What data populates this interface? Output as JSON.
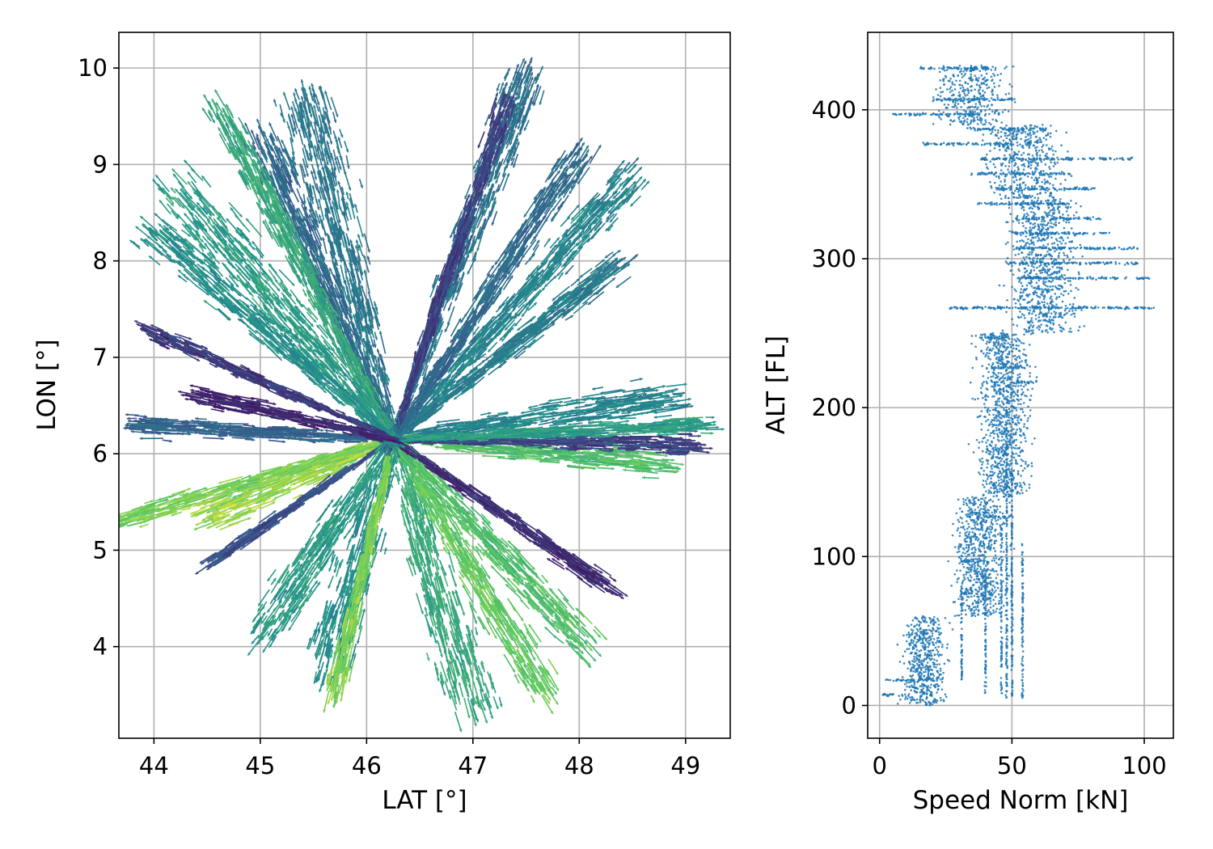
{
  "chart_data": [
    {
      "type": "quiver",
      "xlabel": "LAT [°]",
      "ylabel": "LON [°]",
      "xlim": [
        43.67,
        49.42
      ],
      "ylim": [
        3.05,
        10.37
      ],
      "xticks": [
        44,
        45,
        46,
        47,
        48,
        49
      ],
      "yticks": [
        4,
        5,
        6,
        7,
        8,
        9,
        10
      ],
      "grid": true,
      "center": [
        46.25,
        6.15
      ],
      "colormap": [
        "#440154",
        "#3b528b",
        "#21908d",
        "#5dc963",
        "#fde725"
      ],
      "flows": [
        {
          "to": [
            44.5,
            5.35
          ],
          "spread": 0.2,
          "speed_level": 0.85
        },
        {
          "to": [
            43.7,
            5.3
          ],
          "spread": 0.12,
          "speed_level": 0.8
        },
        {
          "to": [
            44.5,
            4.85
          ],
          "spread": 0.06,
          "speed_level": 0.25
        },
        {
          "to": [
            45.0,
            4.1
          ],
          "spread": 0.25,
          "speed_level": 0.55
        },
        {
          "to": [
            45.6,
            3.7
          ],
          "spread": 0.3,
          "speed_level": 0.5
        },
        {
          "to": [
            45.7,
            3.5
          ],
          "spread": 0.1,
          "speed_level": 0.8
        },
        {
          "to": [
            47.0,
            3.35
          ],
          "spread": 0.3,
          "speed_level": 0.6
        },
        {
          "to": [
            47.7,
            3.5
          ],
          "spread": 0.2,
          "speed_level": 0.75
        },
        {
          "to": [
            48.1,
            4.0
          ],
          "spread": 0.2,
          "speed_level": 0.7
        },
        {
          "to": [
            48.3,
            4.6
          ],
          "spread": 0.1,
          "speed_level": 0.15
        },
        {
          "to": [
            48.8,
            5.9
          ],
          "spread": 0.15,
          "speed_level": 0.7
        },
        {
          "to": [
            49.1,
            6.1
          ],
          "spread": 0.12,
          "speed_level": 0.2
        },
        {
          "to": [
            48.9,
            6.6
          ],
          "spread": 0.2,
          "speed_level": 0.45
        },
        {
          "to": [
            49.2,
            6.3
          ],
          "spread": 0.1,
          "speed_level": 0.55
        },
        {
          "to": [
            48.4,
            8.0
          ],
          "spread": 0.15,
          "speed_level": 0.42
        },
        {
          "to": [
            48.5,
            8.9
          ],
          "spread": 0.2,
          "speed_level": 0.45
        },
        {
          "to": [
            48.0,
            9.1
          ],
          "spread": 0.15,
          "speed_level": 0.35
        },
        {
          "to": [
            47.5,
            9.9
          ],
          "spread": 0.2,
          "speed_level": 0.38
        },
        {
          "to": [
            47.3,
            9.6
          ],
          "spread": 0.1,
          "speed_level": 0.2
        },
        {
          "to": [
            45.4,
            9.7
          ],
          "spread": 0.3,
          "speed_level": 0.4
        },
        {
          "to": [
            45.0,
            9.3
          ],
          "spread": 0.2,
          "speed_level": 0.35
        },
        {
          "to": [
            44.6,
            9.6
          ],
          "spread": 0.15,
          "speed_level": 0.6
        },
        {
          "to": [
            44.2,
            8.8
          ],
          "spread": 0.3,
          "speed_level": 0.55
        },
        {
          "to": [
            44.0,
            8.3
          ],
          "spread": 0.2,
          "speed_level": 0.5
        },
        {
          "to": [
            43.8,
            6.3
          ],
          "spread": 0.12,
          "speed_level": 0.32
        },
        {
          "to": [
            44.0,
            7.25
          ],
          "spread": 0.08,
          "speed_level": 0.18
        },
        {
          "to": [
            44.4,
            6.6
          ],
          "spread": 0.1,
          "speed_level": 0.12
        }
      ]
    },
    {
      "type": "scatter",
      "xlabel": "Speed Norm [kN]",
      "ylabel": "ALT [FL]",
      "xlim": [
        -4.5,
        111
      ],
      "ylim": [
        -22,
        452
      ],
      "xticks": [
        0,
        50,
        100
      ],
      "yticks": [
        0,
        100,
        200,
        300,
        400
      ],
      "grid": true,
      "color": "#1f77b4",
      "bands": [
        {
          "alt_min": 0,
          "alt_max": 60,
          "speed_center": 17,
          "speed_spread": 8
        },
        {
          "alt_min": 60,
          "alt_max": 140,
          "speed_center": 38,
          "speed_spread": 10
        },
        {
          "alt_min": 140,
          "alt_max": 250,
          "speed_center": 47,
          "speed_spread": 10
        },
        {
          "alt_min": 250,
          "alt_max": 340,
          "speed_center": 62,
          "speed_spread": 13
        },
        {
          "alt_min": 340,
          "alt_max": 390,
          "speed_center": 55,
          "speed_spread": 14
        },
        {
          "alt_min": 390,
          "alt_max": 430,
          "speed_center": 35,
          "speed_spread": 14
        }
      ],
      "levels": [
        {
          "alt": 428,
          "speed_from": 15,
          "speed_to": 44
        },
        {
          "alt": 407,
          "speed_from": 20,
          "speed_to": 51
        },
        {
          "alt": 397,
          "speed_from": 5,
          "speed_to": 38
        },
        {
          "alt": 387,
          "speed_from": 33,
          "speed_to": 63
        },
        {
          "alt": 377,
          "speed_from": 16,
          "speed_to": 51
        },
        {
          "alt": 367,
          "speed_from": 38,
          "speed_to": 96
        },
        {
          "alt": 357,
          "speed_from": 34,
          "speed_to": 72
        },
        {
          "alt": 347,
          "speed_from": 44,
          "speed_to": 82
        },
        {
          "alt": 337,
          "speed_from": 37,
          "speed_to": 70
        },
        {
          "alt": 327,
          "speed_from": 51,
          "speed_to": 84
        },
        {
          "alt": 317,
          "speed_from": 50,
          "speed_to": 87
        },
        {
          "alt": 307,
          "speed_from": 51,
          "speed_to": 98
        },
        {
          "alt": 297,
          "speed_from": 48,
          "speed_to": 98
        },
        {
          "alt": 287,
          "speed_from": 52,
          "speed_to": 103
        },
        {
          "alt": 267,
          "speed_from": 26,
          "speed_to": 104
        },
        {
          "alt": 247,
          "speed_from": 37,
          "speed_to": 50
        },
        {
          "alt": 227,
          "speed_from": 42,
          "speed_to": 56
        },
        {
          "alt": 217,
          "speed_from": 50,
          "speed_to": 60
        },
        {
          "alt": 127,
          "speed_from": 40,
          "speed_to": 50
        },
        {
          "alt": 97,
          "speed_from": 30,
          "speed_to": 40
        },
        {
          "alt": 17,
          "speed_from": 2,
          "speed_to": 18
        },
        {
          "alt": 7,
          "speed_from": 1,
          "speed_to": 10
        }
      ],
      "verticals": [
        {
          "speed": 40,
          "alt_min": 8,
          "alt_max": 90
        },
        {
          "speed": 46,
          "alt_min": 8,
          "alt_max": 120
        },
        {
          "speed": 48,
          "alt_min": 5,
          "alt_max": 200
        },
        {
          "speed": 50,
          "alt_min": 5,
          "alt_max": 160
        },
        {
          "speed": 54,
          "alt_min": 5,
          "alt_max": 110
        },
        {
          "speed": 31,
          "alt_min": 15,
          "alt_max": 80
        }
      ]
    }
  ]
}
